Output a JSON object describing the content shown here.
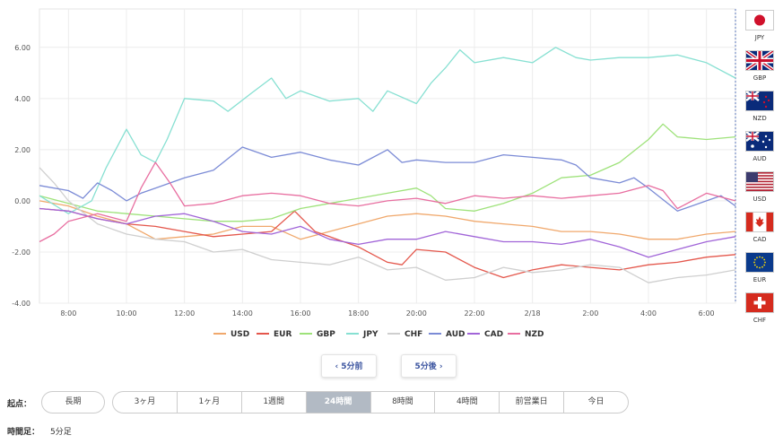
{
  "chart_data": {
    "type": "line",
    "ylim": [
      -4,
      7.5
    ],
    "y_ticks": [
      "-4.00",
      "-2.00",
      "0.00",
      "2.00",
      "4.00",
      "6.00"
    ],
    "y_tick_values": [
      -4,
      -2,
      0,
      2,
      4,
      6
    ],
    "x_ticks": [
      "8:00",
      "10:00",
      "12:00",
      "14:00",
      "16:00",
      "18:00",
      "20:00",
      "22:00",
      "2/18",
      "2:00",
      "4:00",
      "6:00"
    ],
    "x_tick_hours": [
      1,
      3,
      5,
      7,
      9,
      11,
      13,
      15,
      17,
      19,
      21,
      23
    ],
    "x_range_hours": [
      0,
      24
    ],
    "grid": true,
    "legend": "bottom",
    "series": [
      {
        "name": "USD",
        "color": "#f0a86c",
        "points": [
          [
            0,
            0.0
          ],
          [
            1,
            -0.2
          ],
          [
            2,
            -0.6
          ],
          [
            3,
            -0.9
          ],
          [
            4,
            -1.5
          ],
          [
            5,
            -1.4
          ],
          [
            6,
            -1.3
          ],
          [
            7,
            -1.0
          ],
          [
            8,
            -1.0
          ],
          [
            9,
            -1.5
          ],
          [
            10,
            -1.2
          ],
          [
            11,
            -0.9
          ],
          [
            12,
            -0.6
          ],
          [
            13,
            -0.5
          ],
          [
            14,
            -0.6
          ],
          [
            15,
            -0.8
          ],
          [
            16,
            -0.9
          ],
          [
            17,
            -1.0
          ],
          [
            18,
            -1.2
          ],
          [
            19,
            -1.2
          ],
          [
            20,
            -1.3
          ],
          [
            21,
            -1.5
          ],
          [
            22,
            -1.5
          ],
          [
            23,
            -1.3
          ],
          [
            24,
            -1.2
          ]
        ]
      },
      {
        "name": "EUR",
        "color": "#e4574c",
        "points": [
          [
            0,
            -0.3
          ],
          [
            1,
            -0.4
          ],
          [
            2,
            -0.7
          ],
          [
            3,
            -0.9
          ],
          [
            4,
            -1.0
          ],
          [
            5,
            -1.2
          ],
          [
            6,
            -1.4
          ],
          [
            7,
            -1.3
          ],
          [
            8,
            -1.2
          ],
          [
            8.8,
            -0.4
          ],
          [
            9.5,
            -1.2
          ],
          [
            10,
            -1.4
          ],
          [
            11,
            -1.8
          ],
          [
            12,
            -2.4
          ],
          [
            12.5,
            -2.5
          ],
          [
            13,
            -1.9
          ],
          [
            14,
            -2.0
          ],
          [
            15,
            -2.6
          ],
          [
            16,
            -3.0
          ],
          [
            17,
            -2.7
          ],
          [
            18,
            -2.5
          ],
          [
            19,
            -2.6
          ],
          [
            20,
            -2.7
          ],
          [
            21,
            -2.5
          ],
          [
            22,
            -2.4
          ],
          [
            23,
            -2.2
          ],
          [
            24,
            -2.1
          ]
        ]
      },
      {
        "name": "GBP",
        "color": "#9ee27a",
        "points": [
          [
            0,
            0.2
          ],
          [
            1,
            -0.1
          ],
          [
            2,
            -0.4
          ],
          [
            3,
            -0.5
          ],
          [
            4,
            -0.6
          ],
          [
            5,
            -0.7
          ],
          [
            6,
            -0.8
          ],
          [
            7,
            -0.8
          ],
          [
            8,
            -0.7
          ],
          [
            9,
            -0.3
          ],
          [
            10,
            -0.1
          ],
          [
            11,
            0.1
          ],
          [
            12,
            0.3
          ],
          [
            13,
            0.5
          ],
          [
            13.5,
            0.2
          ],
          [
            14,
            -0.3
          ],
          [
            15,
            -0.4
          ],
          [
            16,
            -0.1
          ],
          [
            17,
            0.3
          ],
          [
            18,
            0.9
          ],
          [
            19,
            1.0
          ],
          [
            20,
            1.5
          ],
          [
            21,
            2.4
          ],
          [
            21.5,
            3.0
          ],
          [
            22,
            2.5
          ],
          [
            23,
            2.4
          ],
          [
            24,
            2.5
          ]
        ]
      },
      {
        "name": "JPY",
        "color": "#87e0d2",
        "points": [
          [
            0,
            0.2
          ],
          [
            1,
            -0.5
          ],
          [
            1.8,
            0.0
          ],
          [
            2.3,
            1.3
          ],
          [
            3,
            2.8
          ],
          [
            3.5,
            1.8
          ],
          [
            4,
            1.5
          ],
          [
            4.4,
            2.4
          ],
          [
            5,
            4.0
          ],
          [
            6,
            3.9
          ],
          [
            6.5,
            3.5
          ],
          [
            7.3,
            4.2
          ],
          [
            8,
            4.8
          ],
          [
            8.5,
            4.0
          ],
          [
            9,
            4.3
          ],
          [
            10,
            3.9
          ],
          [
            11,
            4.0
          ],
          [
            11.5,
            3.5
          ],
          [
            12,
            4.3
          ],
          [
            13,
            3.8
          ],
          [
            13.5,
            4.6
          ],
          [
            14,
            5.2
          ],
          [
            14.5,
            5.9
          ],
          [
            15,
            5.4
          ],
          [
            16,
            5.6
          ],
          [
            17,
            5.4
          ],
          [
            17.8,
            6.0
          ],
          [
            18.5,
            5.6
          ],
          [
            19,
            5.5
          ],
          [
            20,
            5.6
          ],
          [
            21,
            5.6
          ],
          [
            22,
            5.7
          ],
          [
            23,
            5.4
          ],
          [
            24,
            4.8
          ]
        ]
      },
      {
        "name": "CHF",
        "color": "#cfcfcf",
        "points": [
          [
            0,
            1.3
          ],
          [
            0.5,
            0.7
          ],
          [
            1,
            0.0
          ],
          [
            2,
            -0.9
          ],
          [
            3,
            -1.3
          ],
          [
            4,
            -1.5
          ],
          [
            5,
            -1.6
          ],
          [
            6,
            -2.0
          ],
          [
            7,
            -1.9
          ],
          [
            8,
            -2.3
          ],
          [
            9,
            -2.4
          ],
          [
            10,
            -2.5
          ],
          [
            11,
            -2.2
          ],
          [
            12,
            -2.7
          ],
          [
            13,
            -2.6
          ],
          [
            14,
            -3.1
          ],
          [
            15,
            -3.0
          ],
          [
            16,
            -2.6
          ],
          [
            17,
            -2.8
          ],
          [
            18,
            -2.7
          ],
          [
            19,
            -2.5
          ],
          [
            20,
            -2.6
          ],
          [
            21,
            -3.2
          ],
          [
            22,
            -3.0
          ],
          [
            23,
            -2.9
          ],
          [
            24,
            -2.7
          ]
        ]
      },
      {
        "name": "AUD",
        "color": "#7b8bd6",
        "points": [
          [
            0,
            0.6
          ],
          [
            1,
            0.4
          ],
          [
            1.5,
            0.1
          ],
          [
            2,
            0.7
          ],
          [
            2.5,
            0.4
          ],
          [
            3,
            0.0
          ],
          [
            3.5,
            0.3
          ],
          [
            4,
            0.5
          ],
          [
            5,
            0.9
          ],
          [
            6,
            1.2
          ],
          [
            7,
            2.1
          ],
          [
            8,
            1.7
          ],
          [
            9,
            1.9
          ],
          [
            10,
            1.6
          ],
          [
            11,
            1.4
          ],
          [
            12,
            2.0
          ],
          [
            12.5,
            1.5
          ],
          [
            13,
            1.6
          ],
          [
            14,
            1.5
          ],
          [
            15,
            1.5
          ],
          [
            16,
            1.8
          ],
          [
            17,
            1.7
          ],
          [
            18,
            1.6
          ],
          [
            18.5,
            1.4
          ],
          [
            19,
            0.9
          ],
          [
            20,
            0.7
          ],
          [
            20.5,
            0.9
          ],
          [
            21,
            0.5
          ],
          [
            22,
            -0.4
          ],
          [
            23,
            0.0
          ],
          [
            23.5,
            0.2
          ],
          [
            24,
            -0.2
          ]
        ]
      },
      {
        "name": "CAD",
        "color": "#a165d8",
        "points": [
          [
            0,
            -0.3
          ],
          [
            1,
            -0.4
          ],
          [
            2,
            -0.7
          ],
          [
            3,
            -0.9
          ],
          [
            4,
            -0.6
          ],
          [
            5,
            -0.5
          ],
          [
            6,
            -0.8
          ],
          [
            7,
            -1.2
          ],
          [
            8,
            -1.3
          ],
          [
            9,
            -1.0
          ],
          [
            10,
            -1.5
          ],
          [
            11,
            -1.7
          ],
          [
            12,
            -1.5
          ],
          [
            13,
            -1.5
          ],
          [
            14,
            -1.2
          ],
          [
            15,
            -1.4
          ],
          [
            16,
            -1.6
          ],
          [
            17,
            -1.6
          ],
          [
            18,
            -1.7
          ],
          [
            19,
            -1.5
          ],
          [
            20,
            -1.8
          ],
          [
            21,
            -2.2
          ],
          [
            22,
            -1.9
          ],
          [
            23,
            -1.6
          ],
          [
            24,
            -1.4
          ]
        ]
      },
      {
        "name": "NZD",
        "color": "#e86ea0",
        "points": [
          [
            0,
            -1.6
          ],
          [
            0.5,
            -1.3
          ],
          [
            1,
            -0.8
          ],
          [
            2,
            -0.5
          ],
          [
            3,
            -0.8
          ],
          [
            3.5,
            0.5
          ],
          [
            4,
            1.5
          ],
          [
            4.5,
            0.7
          ],
          [
            5,
            -0.2
          ],
          [
            6,
            -0.1
          ],
          [
            7,
            0.2
          ],
          [
            8,
            0.3
          ],
          [
            9,
            0.2
          ],
          [
            10,
            -0.1
          ],
          [
            11,
            -0.2
          ],
          [
            12,
            0.0
          ],
          [
            13,
            0.1
          ],
          [
            14,
            -0.1
          ],
          [
            15,
            0.2
          ],
          [
            16,
            0.1
          ],
          [
            17,
            0.2
          ],
          [
            18,
            0.1
          ],
          [
            19,
            0.2
          ],
          [
            20,
            0.3
          ],
          [
            21,
            0.6
          ],
          [
            21.5,
            0.4
          ],
          [
            22,
            -0.3
          ],
          [
            23,
            0.3
          ],
          [
            24,
            0.0
          ]
        ]
      }
    ]
  },
  "flags": [
    {
      "code": "JPY",
      "icon": "japan-flag-icon"
    },
    {
      "code": "GBP",
      "icon": "uk-flag-icon"
    },
    {
      "code": "NZD",
      "icon": "new-zealand-flag-icon"
    },
    {
      "code": "AUD",
      "icon": "australia-flag-icon"
    },
    {
      "code": "USD",
      "icon": "usa-flag-icon"
    },
    {
      "code": "CAD",
      "icon": "canada-flag-icon"
    },
    {
      "code": "EUR",
      "icon": "eu-flag-icon"
    },
    {
      "code": "CHF",
      "icon": "switzerland-flag-icon"
    }
  ],
  "nav": {
    "prev": "‹ 5分前",
    "next": "5分後 ›"
  },
  "controls": {
    "start_label": "起点：",
    "long_label": "長期",
    "periods": [
      "3ヶ月",
      "1ヶ月",
      "1週間",
      "24時間",
      "8時間",
      "4時間",
      "前営業日",
      "今日"
    ],
    "active_period": "24時間",
    "interval_label": "時間足：",
    "interval_value": "5分足"
  }
}
